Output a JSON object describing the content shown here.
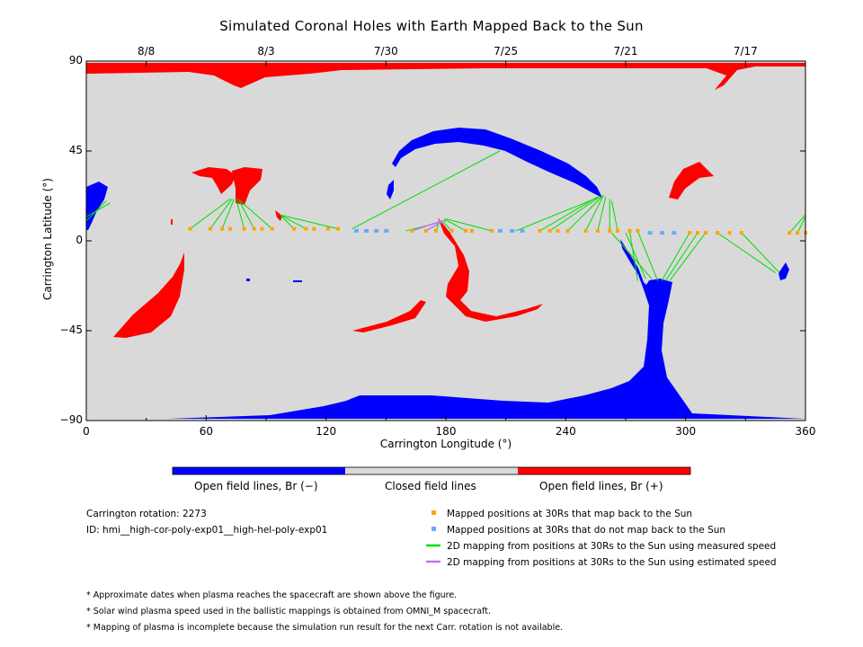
{
  "chart_data": {
    "type": "scatter",
    "title": "Simulated Coronal Holes with Earth Mapped Back to the Sun",
    "xlabel": "Carrington Longitude (°)",
    "ylabel": "Carrington Latitude (°)",
    "xlim": [
      0,
      360
    ],
    "ylim": [
      -90,
      90
    ],
    "x_ticks": [
      0,
      60,
      120,
      180,
      240,
      300,
      360
    ],
    "y_ticks": [
      -90,
      -45,
      0,
      45,
      90
    ],
    "y_tick_labels": [
      "−90",
      "−45",
      "0",
      "45",
      "90"
    ],
    "top_axis_dates": [
      {
        "label": "8/8",
        "lon": 30
      },
      {
        "label": "8/3",
        "lon": 90
      },
      {
        "label": "7/30",
        "lon": 150
      },
      {
        "label": "7/25",
        "lon": 210
      },
      {
        "label": "7/21",
        "lon": 270
      },
      {
        "label": "7/17",
        "lon": 330
      }
    ],
    "colorbar": [
      {
        "label": "Open field lines, Br (−)",
        "color": "#0000ff"
      },
      {
        "label": "Closed field lines",
        "color": "#d9d9d9"
      },
      {
        "label": "Open field lines, Br (+)",
        "color": "#ff0000"
      }
    ],
    "mapped_points_back": [
      {
        "lon": 52,
        "lat": 6
      },
      {
        "lon": 62,
        "lat": 6
      },
      {
        "lon": 68,
        "lat": 6
      },
      {
        "lon": 72,
        "lat": 6
      },
      {
        "lon": 79,
        "lat": 6
      },
      {
        "lon": 84,
        "lat": 6
      },
      {
        "lon": 88,
        "lat": 6
      },
      {
        "lon": 93,
        "lat": 6
      },
      {
        "lon": 104,
        "lat": 6
      },
      {
        "lon": 110,
        "lat": 6
      },
      {
        "lon": 114,
        "lat": 6
      },
      {
        "lon": 121,
        "lat": 6
      },
      {
        "lon": 126,
        "lat": 6
      },
      {
        "lon": 163,
        "lat": 5
      },
      {
        "lon": 170,
        "lat": 5
      },
      {
        "lon": 175,
        "lat": 5
      },
      {
        "lon": 183,
        "lat": 5
      },
      {
        "lon": 190,
        "lat": 5
      },
      {
        "lon": 193,
        "lat": 5
      },
      {
        "lon": 203,
        "lat": 5
      },
      {
        "lon": 227,
        "lat": 5
      },
      {
        "lon": 232,
        "lat": 5
      },
      {
        "lon": 236,
        "lat": 5
      },
      {
        "lon": 241,
        "lat": 5
      },
      {
        "lon": 250,
        "lat": 5
      },
      {
        "lon": 256,
        "lat": 5
      },
      {
        "lon": 262,
        "lat": 5
      },
      {
        "lon": 266,
        "lat": 5
      },
      {
        "lon": 272,
        "lat": 5
      },
      {
        "lon": 276,
        "lat": 5
      },
      {
        "lon": 302,
        "lat": 4
      },
      {
        "lon": 306,
        "lat": 4
      },
      {
        "lon": 310,
        "lat": 4
      },
      {
        "lon": 316,
        "lat": 4
      },
      {
        "lon": 322,
        "lat": 4
      },
      {
        "lon": 328,
        "lat": 4
      },
      {
        "lon": 352,
        "lat": 4
      },
      {
        "lon": 356,
        "lat": 4
      },
      {
        "lon": 360,
        "lat": 4
      }
    ],
    "mapped_points_no_back": [
      {
        "lon": 135,
        "lat": 5
      },
      {
        "lon": 140,
        "lat": 5
      },
      {
        "lon": 145,
        "lat": 5
      },
      {
        "lon": 150,
        "lat": 5
      },
      {
        "lon": 207,
        "lat": 5
      },
      {
        "lon": 213,
        "lat": 5
      },
      {
        "lon": 218,
        "lat": 5
      },
      {
        "lon": 282,
        "lat": 4
      },
      {
        "lon": 288,
        "lat": 4
      },
      {
        "lon": 294,
        "lat": 4
      }
    ],
    "mapping_lines_measured": [
      {
        "from": [
          52,
          6
        ],
        "to": [
          72,
          21
        ]
      },
      {
        "from": [
          62,
          6
        ],
        "to": [
          73,
          21
        ]
      },
      {
        "from": [
          68,
          6
        ],
        "to": [
          74,
          21
        ]
      },
      {
        "from": [
          79,
          6
        ],
        "to": [
          75,
          21
        ]
      },
      {
        "from": [
          84,
          6
        ],
        "to": [
          76,
          21
        ]
      },
      {
        "from": [
          93,
          6
        ],
        "to": [
          77,
          20
        ]
      },
      {
        "from": [
          104,
          6
        ],
        "to": [
          97,
          13
        ]
      },
      {
        "from": [
          110,
          6
        ],
        "to": [
          97,
          13
        ]
      },
      {
        "from": [
          126,
          6
        ],
        "to": [
          97,
          13
        ]
      },
      {
        "from": [
          133,
          6
        ],
        "to": [
          207,
          45
        ]
      },
      {
        "from": [
          175,
          5
        ],
        "to": [
          177,
          10
        ]
      },
      {
        "from": [
          183,
          5
        ],
        "to": [
          178,
          10
        ]
      },
      {
        "from": [
          190,
          5
        ],
        "to": [
          179,
          11
        ]
      },
      {
        "from": [
          203,
          5
        ],
        "to": [
          180,
          11
        ]
      },
      {
        "from": [
          227,
          5
        ],
        "to": [
          256,
          22
        ]
      },
      {
        "from": [
          232,
          5
        ],
        "to": [
          257,
          22
        ]
      },
      {
        "from": [
          241,
          5
        ],
        "to": [
          258,
          22
        ]
      },
      {
        "from": [
          250,
          5
        ],
        "to": [
          259,
          23
        ]
      },
      {
        "from": [
          256,
          5
        ],
        "to": [
          260,
          22
        ]
      },
      {
        "from": [
          262,
          5
        ],
        "to": [
          262,
          21
        ]
      },
      {
        "from": [
          266,
          5
        ],
        "to": [
          263,
          20
        ]
      },
      {
        "from": [
          272,
          5
        ],
        "to": [
          276,
          -20
        ]
      },
      {
        "from": [
          276,
          5
        ],
        "to": [
          286,
          -20
        ]
      },
      {
        "from": [
          302,
          4
        ],
        "to": [
          288,
          -20
        ]
      },
      {
        "from": [
          306,
          4
        ],
        "to": [
          290,
          -20
        ]
      },
      {
        "from": [
          310,
          4
        ],
        "to": [
          292,
          -20
        ]
      },
      {
        "from": [
          328,
          4
        ],
        "to": [
          347,
          -16
        ]
      },
      {
        "from": [
          316,
          4
        ],
        "to": [
          345,
          -16
        ]
      },
      {
        "from": [
          352,
          4
        ],
        "to": [
          360,
          13
        ]
      },
      {
        "from": [
          356,
          4
        ],
        "to": [
          360,
          12
        ]
      },
      {
        "from": [
          0,
          10
        ],
        "to": [
          10,
          20
        ]
      },
      {
        "from": [
          0,
          12
        ],
        "to": [
          12,
          19
        ]
      },
      {
        "from": [
          263,
          4
        ],
        "to": [
          283,
          -19
        ]
      },
      {
        "from": [
          270,
          4
        ],
        "to": [
          280,
          -19
        ]
      },
      {
        "from": [
          160,
          5
        ],
        "to": [
          180,
          10
        ]
      },
      {
        "from": [
          215,
          5
        ],
        "to": [
          257,
          22
        ]
      }
    ],
    "mapping_lines_estimated": [
      {
        "from": [
          163,
          5
        ],
        "to": [
          178,
          10
        ]
      },
      {
        "from": [
          170,
          5
        ],
        "to": [
          179,
          10
        ]
      }
    ],
    "legend": [
      {
        "label": "Mapped positions at 30Rs that map back to the Sun",
        "color": "#ffa500",
        "kind": "square"
      },
      {
        "label": "Mapped positions at 30Rs that do not map back to the Sun",
        "color": "#66aaff",
        "kind": "square"
      },
      {
        "label": "2D mapping from positions at 30Rs to the Sun using measured speed",
        "color": "#00dd00",
        "kind": "line"
      },
      {
        "label": "2D mapping from positions at 30Rs to the Sun using estimated speed",
        "color": "#bb77ee",
        "kind": "line"
      }
    ]
  },
  "info": {
    "rotation": "Carrington rotation: 2273",
    "id": "ID: hmi__high-cor-poly-exp01__high-hel-poly-exp01"
  },
  "notes": [
    "* Approximate dates when plasma reaches the spacecraft are shown above the figure.",
    "* Solar wind plasma speed used in the ballistic mappings is obtained from OMNI_M spacecraft.",
    "* Mapping of plasma is incomplete because the simulation run result for the next Carr. rotation is not available."
  ],
  "colors": {
    "closed": "#d9d9d9",
    "negative": "#0000ff",
    "positive": "#ff0000",
    "back": "#ffa500",
    "no_back": "#66aaff",
    "measured": "#00dd00",
    "estimated": "#bb77ee"
  }
}
